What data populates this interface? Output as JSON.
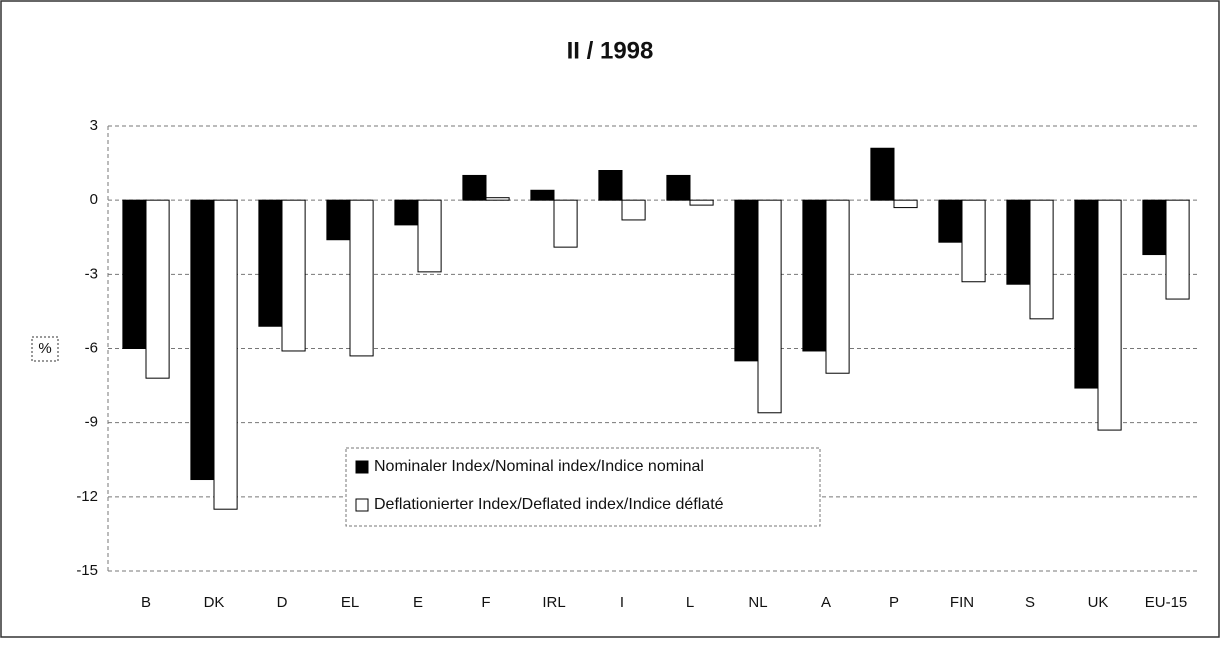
{
  "chart_data": {
    "type": "bar",
    "title": "II / 1998",
    "ylabel": "%",
    "categories": [
      "B",
      "DK",
      "D",
      "EL",
      "E",
      "F",
      "IRL",
      "I",
      "L",
      "NL",
      "A",
      "P",
      "FIN",
      "S",
      "UK",
      "EU-15"
    ],
    "series": [
      {
        "name": "Nominaler Index/Nominal index/Indice nominal",
        "color": "#000000",
        "values": [
          -6.0,
          -11.3,
          -5.1,
          -1.6,
          -1.0,
          1.0,
          0.4,
          1.2,
          1.0,
          -6.5,
          -6.1,
          2.1,
          -1.7,
          -3.4,
          -7.6,
          -2.2
        ]
      },
      {
        "name": "Deflationierter Index/Deflated index/Indice déflaté",
        "color": "#ffffff",
        "values": [
          -7.2,
          -12.5,
          -6.1,
          -6.3,
          -2.9,
          0.1,
          -1.9,
          -0.8,
          -0.2,
          -8.6,
          -7.0,
          -0.3,
          -3.3,
          -4.8,
          -9.3,
          -4.0
        ]
      }
    ],
    "ylim": [
      -15,
      3
    ],
    "yticks": [
      3,
      0,
      -3,
      -6,
      -9,
      -12,
      -15
    ],
    "grid": true
  }
}
